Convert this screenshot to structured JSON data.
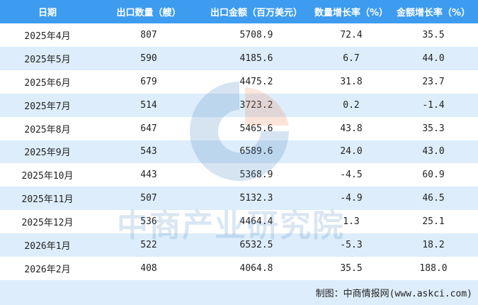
{
  "table": {
    "headers": [
      "日期",
      "出口数量（艘）",
      "出口金额（百万美元）",
      "数量增长率（%）",
      "金额增长率（%）"
    ],
    "rows": [
      [
        "2025年4月",
        "807",
        "5708.9",
        "72.4",
        "35.5"
      ],
      [
        "2025年5月",
        "590",
        "4185.6",
        "6.7",
        "44.0"
      ],
      [
        "2025年6月",
        "679",
        "4475.2",
        "31.8",
        "23.7"
      ],
      [
        "2025年7月",
        "514",
        "3723.2",
        "0.2",
        "-1.4"
      ],
      [
        "2025年8月",
        "647",
        "5465.6",
        "43.8",
        "35.3"
      ],
      [
        "2025年9月",
        "543",
        "6589.6",
        "24.0",
        "43.0"
      ],
      [
        "2025年10月",
        "443",
        "5368.9",
        "-4.5",
        "60.9"
      ],
      [
        "2025年11月",
        "507",
        "5132.3",
        "-4.9",
        "46.5"
      ],
      [
        "2025年12月",
        "536",
        "4464.4",
        "1.3",
        "25.1"
      ],
      [
        "2026年1月",
        "522",
        "6532.5",
        "-5.3",
        "18.2"
      ],
      [
        "2026年2月",
        "408",
        "4064.8",
        "35.5",
        "188.0"
      ]
    ]
  },
  "footer": {
    "source": "制图：中商情报网(www.askci.com)"
  },
  "watermark": {
    "text": "中商产业研究院"
  },
  "colors": {
    "header": "#3d9cf0",
    "alt_row": "#ddedfb"
  }
}
